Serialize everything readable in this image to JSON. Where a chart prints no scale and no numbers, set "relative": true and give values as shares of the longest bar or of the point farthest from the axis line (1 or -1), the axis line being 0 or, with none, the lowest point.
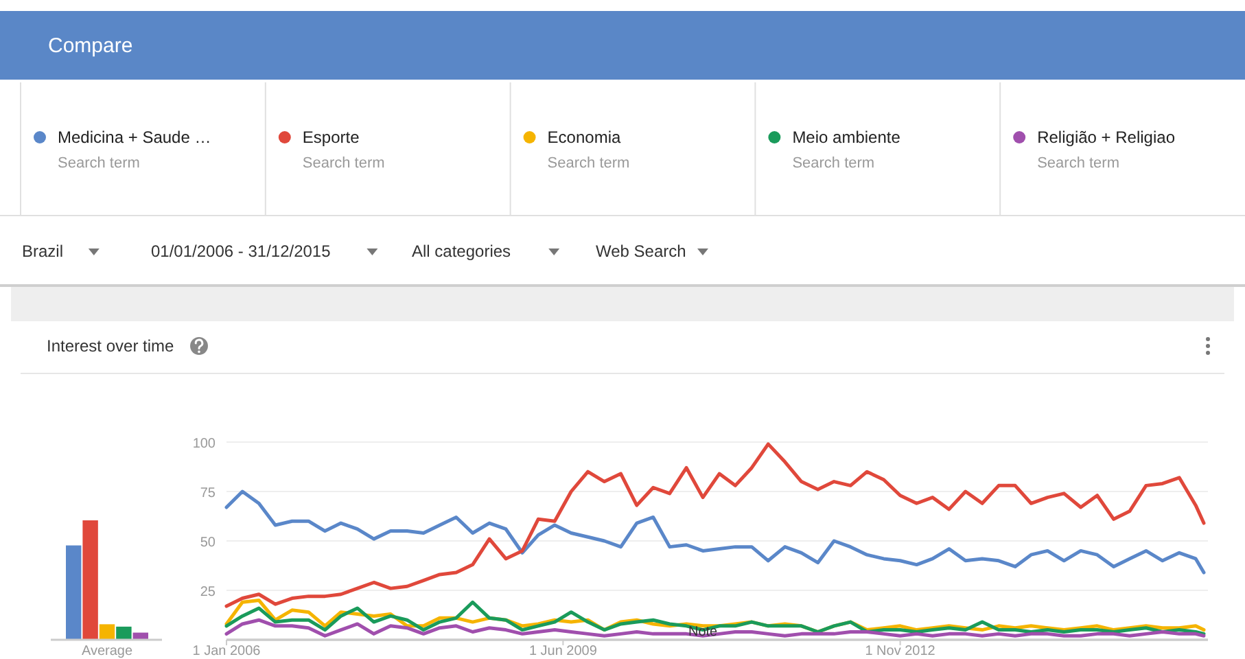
{
  "chart_data": [
    {
      "type": "bar",
      "relative": true,
      "categories": [
        null,
        null,
        null,
        null,
        null
      ],
      "values": [
        0.79,
        1,
        0.13,
        0.11,
        0.06
      ],
      "colors": [
        "#5a87c9",
        "#e0483b",
        "#f5b400",
        "#1a9b5b",
        "#a04fad"
      ],
      "xlabel": "Average"
    },
    {
      "type": "line",
      "title": "Interest over time",
      "legend": "top",
      "grid": "y",
      "marker": "none",
      "line_style": "solid",
      "x": [
        "2006-01",
        "2006-03",
        "2006-05",
        "2006-07",
        "2006-09",
        "2006-11",
        "2007-01",
        "2007-03",
        "2007-05",
        "2007-07",
        "2007-09",
        "2007-11",
        "2008-01",
        "2008-03",
        "2008-05",
        "2008-07",
        "2008-09",
        "2008-11",
        "2009-01",
        "2009-03",
        "2009-05",
        "2009-07",
        "2009-09",
        "2009-11",
        "2010-01",
        "2010-03",
        "2010-05",
        "2010-07",
        "2010-09",
        "2010-11",
        "2011-01",
        "2011-03",
        "2011-05",
        "2011-07",
        "2011-09",
        "2011-11",
        "2012-01",
        "2012-03",
        "2012-05",
        "2012-07",
        "2012-09",
        "2012-11",
        "2013-01",
        "2013-03",
        "2013-05",
        "2013-07",
        "2013-09",
        "2013-11",
        "2014-01",
        "2014-03",
        "2014-05",
        "2014-07",
        "2014-09",
        "2014-11",
        "2015-01",
        "2015-03",
        "2015-05",
        "2015-07",
        "2015-09",
        "2015-11",
        "2015-12"
      ],
      "xlim": [
        "2006-01",
        "2015-12"
      ],
      "xticks": [
        {
          "value": "2006-01",
          "label": "1 Jan 2006"
        },
        {
          "value": "2009-06",
          "label": "1 Jun 2009"
        },
        {
          "value": "2012-11",
          "label": "1 Nov 2012"
        }
      ],
      "ylim": [
        0,
        100
      ],
      "yticks": [
        {
          "value": 0,
          "label": null
        },
        25,
        50,
        75,
        100
      ],
      "series": [
        {
          "name": "Medicina + Saude …",
          "color": "#5a87c9",
          "values": [
            67,
            75,
            69,
            58,
            60,
            60,
            55,
            59,
            56,
            51,
            55,
            55,
            54,
            58,
            62,
            54,
            59,
            56,
            44,
            53,
            58,
            54,
            52,
            50,
            47,
            59,
            62,
            47,
            48,
            45,
            46,
            47,
            47,
            40,
            47,
            44,
            39,
            50,
            47,
            43,
            41,
            40,
            38,
            41,
            46,
            40,
            41,
            40,
            37,
            43,
            45,
            40,
            45,
            43,
            37,
            41,
            45,
            40,
            44,
            41,
            34
          ]
        },
        {
          "name": "Esporte",
          "color": "#e0483b",
          "values": [
            17,
            21,
            23,
            18,
            21,
            22,
            22,
            23,
            26,
            29,
            26,
            27,
            30,
            33,
            34,
            38,
            51,
            41,
            45,
            61,
            60,
            75,
            85,
            80,
            84,
            68,
            77,
            74,
            87,
            72,
            84,
            78,
            87,
            99,
            90,
            80,
            76,
            80,
            78,
            85,
            81,
            73,
            69,
            72,
            66,
            75,
            69,
            78,
            78,
            69,
            72,
            74,
            67,
            73,
            61,
            65,
            78,
            79,
            82,
            68,
            59
          ]
        },
        {
          "name": "Economia",
          "color": "#f5b400",
          "values": [
            8,
            19,
            20,
            10,
            15,
            14,
            7,
            14,
            13,
            12,
            13,
            7,
            7,
            11,
            11,
            9,
            11,
            10,
            7,
            8,
            10,
            9,
            10,
            5,
            9,
            10,
            8,
            7,
            8,
            7,
            7,
            8,
            9,
            7,
            8,
            7,
            4,
            7,
            9,
            5,
            6,
            7,
            5,
            6,
            7,
            6,
            5,
            7,
            6,
            7,
            6,
            5,
            6,
            7,
            5,
            6,
            7,
            6,
            6,
            7,
            5
          ]
        },
        {
          "name": "Meio ambiente",
          "color": "#1a9b5b",
          "values": [
            7,
            12,
            16,
            9,
            10,
            10,
            5,
            12,
            16,
            9,
            12,
            10,
            5,
            9,
            11,
            19,
            11,
            10,
            5,
            7,
            9,
            14,
            9,
            5,
            8,
            9,
            10,
            8,
            7,
            5,
            7,
            7,
            9,
            7,
            7,
            7,
            4,
            7,
            9,
            4,
            5,
            5,
            4,
            5,
            6,
            5,
            9,
            5,
            5,
            4,
            5,
            4,
            5,
            5,
            4,
            5,
            6,
            4,
            5,
            4,
            3
          ]
        },
        {
          "name": "Religião + Religiao",
          "color": "#a04fad",
          "values": [
            3,
            8,
            10,
            7,
            7,
            6,
            2,
            5,
            8,
            3,
            7,
            6,
            3,
            6,
            7,
            4,
            6,
            5,
            3,
            4,
            5,
            4,
            3,
            2,
            3,
            4,
            3,
            3,
            3,
            2,
            3,
            4,
            4,
            3,
            2,
            3,
            3,
            3,
            4,
            4,
            3,
            2,
            3,
            2,
            3,
            3,
            2,
            3,
            2,
            3,
            3,
            2,
            2,
            3,
            3,
            2,
            3,
            4,
            3,
            3,
            2
          ]
        }
      ],
      "annotations": [
        "Compare",
        "Search term",
        "Search term",
        "Search term",
        "Search term",
        "Search term",
        "Brazil",
        "01/01/2006 - 31/12/2015",
        "All categories",
        "Web Search",
        {
          "text": "Note",
          "x": "2010-11",
          "y": 5
        }
      ]
    }
  ]
}
